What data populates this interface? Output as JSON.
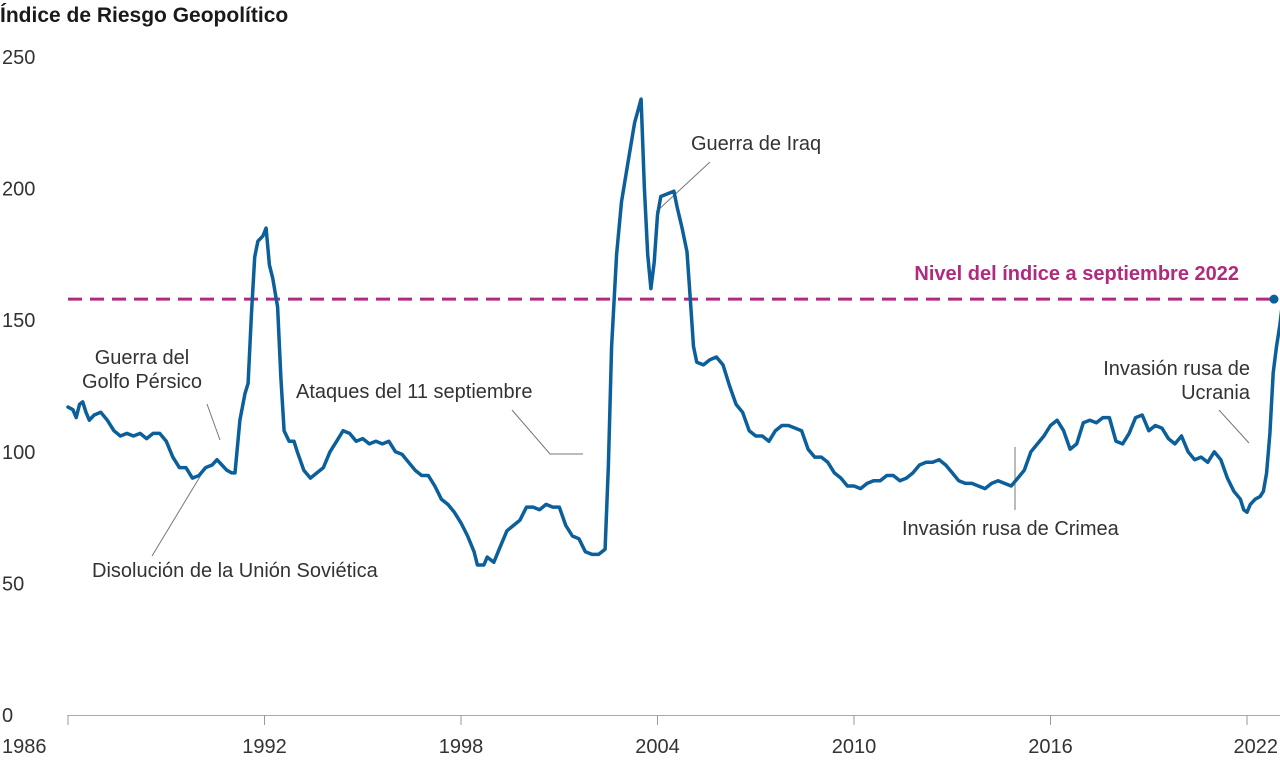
{
  "chart_data": {
    "type": "line",
    "title": "Índice de Riesgo Geopolítico",
    "xlabel": "",
    "ylabel": "",
    "xlim": [
      1986,
      2022.75
    ],
    "ylim": [
      0,
      250
    ],
    "yticks": [
      "0",
      "50",
      "100",
      "150",
      "200",
      "250"
    ],
    "xticks": [
      "1986",
      "1992",
      "1998",
      "2004",
      "2010",
      "2016",
      "2022"
    ],
    "grid": false,
    "series": [
      {
        "name": "Índice de Riesgo Geopolítico",
        "color": "#0b5f9a",
        "points": [
          [
            1986.0,
            117
          ],
          [
            1986.15,
            116
          ],
          [
            1986.25,
            113
          ],
          [
            1986.35,
            118
          ],
          [
            1986.45,
            119
          ],
          [
            1986.55,
            115
          ],
          [
            1986.65,
            112
          ],
          [
            1986.8,
            114
          ],
          [
            1987.0,
            115
          ],
          [
            1987.2,
            112
          ],
          [
            1987.4,
            108
          ],
          [
            1987.6,
            106
          ],
          [
            1987.8,
            107
          ],
          [
            1988.0,
            106
          ],
          [
            1988.2,
            107
          ],
          [
            1988.4,
            105
          ],
          [
            1988.6,
            107
          ],
          [
            1988.8,
            107
          ],
          [
            1989.0,
            104
          ],
          [
            1989.2,
            98
          ],
          [
            1989.4,
            94
          ],
          [
            1989.6,
            94
          ],
          [
            1989.8,
            90
          ],
          [
            1990.0,
            91
          ],
          [
            1990.2,
            94
          ],
          [
            1990.4,
            95
          ],
          [
            1990.55,
            97
          ],
          [
            1990.7,
            95
          ],
          [
            1990.85,
            93
          ],
          [
            1991.0,
            92
          ],
          [
            1991.1,
            92
          ],
          [
            1991.25,
            112
          ],
          [
            1991.4,
            122
          ],
          [
            1991.5,
            126
          ],
          [
            1991.6,
            152
          ],
          [
            1991.7,
            174
          ],
          [
            1991.8,
            180
          ],
          [
            1991.95,
            182
          ],
          [
            1992.05,
            185
          ],
          [
            1992.15,
            171
          ],
          [
            1992.25,
            166
          ],
          [
            1992.4,
            155
          ],
          [
            1992.5,
            128
          ],
          [
            1992.6,
            108
          ],
          [
            1992.75,
            104
          ],
          [
            1992.9,
            104
          ],
          [
            1993.0,
            100
          ],
          [
            1993.2,
            93
          ],
          [
            1993.4,
            90
          ],
          [
            1993.6,
            92
          ],
          [
            1993.8,
            94
          ],
          [
            1994.0,
            100
          ],
          [
            1994.2,
            104
          ],
          [
            1994.4,
            108
          ],
          [
            1994.6,
            107
          ],
          [
            1994.8,
            104
          ],
          [
            1995.0,
            105
          ],
          [
            1995.2,
            103
          ],
          [
            1995.4,
            104
          ],
          [
            1995.6,
            103
          ],
          [
            1995.8,
            104
          ],
          [
            1996.0,
            100
          ],
          [
            1996.2,
            99
          ],
          [
            1996.4,
            96
          ],
          [
            1996.6,
            93
          ],
          [
            1996.8,
            91
          ],
          [
            1997.0,
            91
          ],
          [
            1997.2,
            87
          ],
          [
            1997.4,
            82
          ],
          [
            1997.6,
            80
          ],
          [
            1997.8,
            77
          ],
          [
            1998.0,
            73
          ],
          [
            1998.2,
            68
          ],
          [
            1998.4,
            62
          ],
          [
            1998.5,
            57
          ],
          [
            1998.7,
            57
          ],
          [
            1998.8,
            60
          ],
          [
            1999.0,
            58
          ],
          [
            1999.2,
            64
          ],
          [
            1999.4,
            70
          ],
          [
            1999.6,
            72
          ],
          [
            1999.8,
            74
          ],
          [
            2000.0,
            79
          ],
          [
            2000.2,
            79
          ],
          [
            2000.4,
            78
          ],
          [
            2000.6,
            80
          ],
          [
            2000.8,
            79
          ],
          [
            2001.0,
            79
          ],
          [
            2001.2,
            72
          ],
          [
            2001.4,
            68
          ],
          [
            2001.6,
            67
          ],
          [
            2001.8,
            62
          ],
          [
            2002.0,
            61
          ],
          [
            2002.2,
            61
          ],
          [
            2002.4,
            63
          ],
          [
            2002.5,
            95
          ],
          [
            2002.6,
            140
          ],
          [
            2002.75,
            175
          ],
          [
            2002.9,
            195
          ],
          [
            2003.1,
            210
          ],
          [
            2003.3,
            225
          ],
          [
            2003.5,
            234
          ],
          [
            2003.6,
            200
          ],
          [
            2003.7,
            175
          ],
          [
            2003.8,
            162
          ],
          [
            2003.9,
            172
          ],
          [
            2004.0,
            190
          ],
          [
            2004.1,
            197
          ],
          [
            2004.3,
            198
          ],
          [
            2004.5,
            199
          ],
          [
            2004.6,
            193
          ],
          [
            2004.75,
            185
          ],
          [
            2004.9,
            176
          ],
          [
            2005.0,
            158
          ],
          [
            2005.1,
            140
          ],
          [
            2005.2,
            134
          ],
          [
            2005.4,
            133
          ],
          [
            2005.6,
            135
          ],
          [
            2005.8,
            136
          ],
          [
            2006.0,
            133
          ],
          [
            2006.2,
            125
          ],
          [
            2006.4,
            118
          ],
          [
            2006.6,
            115
          ],
          [
            2006.8,
            108
          ],
          [
            2007.0,
            106
          ],
          [
            2007.2,
            106
          ],
          [
            2007.4,
            104
          ],
          [
            2007.6,
            108
          ],
          [
            2007.8,
            110
          ],
          [
            2008.0,
            110
          ],
          [
            2008.2,
            109
          ],
          [
            2008.4,
            108
          ],
          [
            2008.6,
            101
          ],
          [
            2008.8,
            98
          ],
          [
            2009.0,
            98
          ],
          [
            2009.2,
            96
          ],
          [
            2009.4,
            92
          ],
          [
            2009.6,
            90
          ],
          [
            2009.8,
            87
          ],
          [
            2010.0,
            87
          ],
          [
            2010.2,
            86
          ],
          [
            2010.4,
            88
          ],
          [
            2010.6,
            89
          ],
          [
            2010.8,
            89
          ],
          [
            2011.0,
            91
          ],
          [
            2011.2,
            91
          ],
          [
            2011.4,
            89
          ],
          [
            2011.6,
            90
          ],
          [
            2011.8,
            92
          ],
          [
            2012.0,
            95
          ],
          [
            2012.2,
            96
          ],
          [
            2012.4,
            96
          ],
          [
            2012.6,
            97
          ],
          [
            2012.8,
            95
          ],
          [
            2013.0,
            92
          ],
          [
            2013.2,
            89
          ],
          [
            2013.4,
            88
          ],
          [
            2013.6,
            88
          ],
          [
            2013.8,
            87
          ],
          [
            2014.0,
            86
          ],
          [
            2014.2,
            88
          ],
          [
            2014.4,
            89
          ],
          [
            2014.6,
            88
          ],
          [
            2014.8,
            87
          ],
          [
            2015.0,
            90
          ],
          [
            2015.2,
            93
          ],
          [
            2015.4,
            100
          ],
          [
            2015.6,
            103
          ],
          [
            2015.8,
            106
          ],
          [
            2016.0,
            110
          ],
          [
            2016.2,
            112
          ],
          [
            2016.4,
            108
          ],
          [
            2016.6,
            101
          ],
          [
            2016.8,
            103
          ],
          [
            2017.0,
            111
          ],
          [
            2017.2,
            112
          ],
          [
            2017.4,
            111
          ],
          [
            2017.6,
            113
          ],
          [
            2017.8,
            113
          ],
          [
            2018.0,
            104
          ],
          [
            2018.2,
            103
          ],
          [
            2018.4,
            107
          ],
          [
            2018.6,
            113
          ],
          [
            2018.8,
            114
          ],
          [
            2019.0,
            108
          ],
          [
            2019.2,
            110
          ],
          [
            2019.4,
            109
          ],
          [
            2019.6,
            105
          ],
          [
            2019.8,
            103
          ],
          [
            2020.0,
            106
          ],
          [
            2020.2,
            100
          ],
          [
            2020.4,
            97
          ],
          [
            2020.6,
            98
          ],
          [
            2020.8,
            96
          ],
          [
            2021.0,
            100
          ],
          [
            2021.2,
            97
          ],
          [
            2021.4,
            90
          ],
          [
            2021.6,
            85
          ],
          [
            2021.8,
            82
          ],
          [
            2021.9,
            78
          ],
          [
            2022.0,
            77
          ],
          [
            2022.1,
            80
          ],
          [
            2022.25,
            82
          ],
          [
            2022.4,
            83
          ],
          [
            2022.5,
            85
          ],
          [
            2022.6,
            92
          ],
          [
            2022.7,
            107
          ],
          [
            2022.8,
            130
          ],
          [
            2022.9,
            140
          ],
          [
            2023.0,
            148
          ],
          [
            2023.1,
            158
          ]
        ]
      }
    ],
    "reference_line": {
      "label": "Nivel del índice a septiembre 2022",
      "value": 158,
      "color": "#b02a7d"
    },
    "annotations": [
      {
        "lines": [
          "Guerra del",
          "Golfo Pérsico"
        ],
        "x": 1991.2,
        "y": 112
      },
      {
        "lines": [
          "Disolución de la Unión Soviética"
        ],
        "x": 1990.7,
        "y": 94
      },
      {
        "lines": [
          "Ataques del 11 septiembre"
        ],
        "x": 2002.4,
        "y": 98
      },
      {
        "lines": [
          "Guerra de Iraq"
        ],
        "x": 2004.7,
        "y": 191
      },
      {
        "lines": [
          "Invasión rusa de Crimea"
        ],
        "x": 2015.45,
        "y": 102
      },
      {
        "lines": [
          "Invasión rusa de",
          "Ucrania"
        ],
        "x": 2022.65,
        "y": 103
      }
    ]
  }
}
